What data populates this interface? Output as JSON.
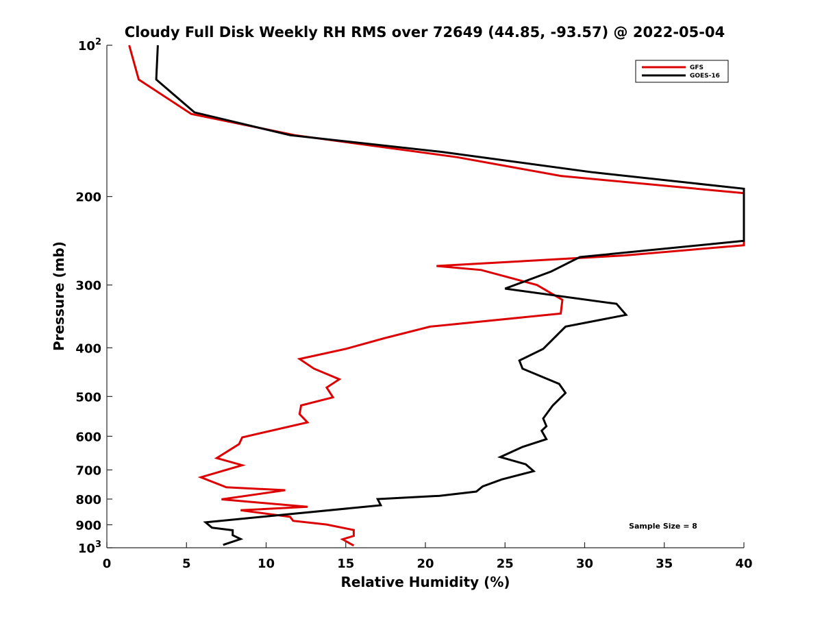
{
  "chart_data": {
    "type": "line",
    "title": "Cloudy Full Disk Weekly RH RMS over 72649 (44.85, -93.57) @ 2022-05-04",
    "xlabel": "Relative Humidity (%)",
    "ylabel": "Pressure (mb)",
    "xlim": [
      0,
      40
    ],
    "ylim": [
      100,
      1000
    ],
    "yscale": "log",
    "y_reversed": true,
    "xticks": [
      0,
      5,
      10,
      15,
      20,
      25,
      30,
      35,
      40
    ],
    "xtick_labels": [
      "0",
      "5",
      "10",
      "15",
      "20",
      "25",
      "30",
      "35",
      "40"
    ],
    "yticks": [
      100,
      200,
      300,
      400,
      500,
      600,
      700,
      800,
      900,
      1000
    ],
    "ytick_labels": [
      {
        "base": "10",
        "exp": "2"
      },
      {
        "base": "200",
        "exp": ""
      },
      {
        "base": "300",
        "exp": ""
      },
      {
        "base": "400",
        "exp": ""
      },
      {
        "base": "500",
        "exp": ""
      },
      {
        "base": "600",
        "exp": ""
      },
      {
        "base": "700",
        "exp": ""
      },
      {
        "base": "800",
        "exp": ""
      },
      {
        "base": "900",
        "exp": ""
      },
      {
        "base": "10",
        "exp": "3"
      }
    ],
    "grid": false,
    "legend": {
      "location": "top-right"
    },
    "annotation": "Sample Size = 8",
    "series": [
      {
        "name": "GFS",
        "color": "#dd0000",
        "points": [
          [
            1.4,
            100
          ],
          [
            2.0,
            117
          ],
          [
            5.3,
            137
          ],
          [
            11.8,
            151
          ],
          [
            22.0,
            167
          ],
          [
            28.5,
            182
          ],
          [
            40.0,
            197
          ],
          [
            40.0,
            250
          ],
          [
            32.5,
            262
          ],
          [
            20.7,
            275
          ],
          [
            23.5,
            280
          ],
          [
            27.0,
            300
          ],
          [
            28.6,
            321
          ],
          [
            28.5,
            342
          ],
          [
            20.3,
            363
          ],
          [
            17.4,
            383
          ],
          [
            15.0,
            402
          ],
          [
            12.1,
            421
          ],
          [
            13.0,
            440
          ],
          [
            14.6,
            462
          ],
          [
            13.8,
            480
          ],
          [
            14.2,
            502
          ],
          [
            12.2,
            521
          ],
          [
            12.1,
            542
          ],
          [
            12.6,
            563
          ],
          [
            8.5,
            603
          ],
          [
            8.3,
            622
          ],
          [
            6.9,
            663
          ],
          [
            8.5,
            685
          ],
          [
            5.9,
            724
          ],
          [
            7.5,
            758
          ],
          [
            11.2,
            768
          ],
          [
            7.2,
            801
          ],
          [
            12.6,
            829
          ],
          [
            8.4,
            842
          ],
          [
            11.5,
            868
          ],
          [
            11.7,
            884
          ],
          [
            13.8,
            899
          ],
          [
            15.5,
            922
          ],
          [
            15.5,
            947
          ],
          [
            14.8,
            962
          ],
          [
            15.5,
            990
          ]
        ]
      },
      {
        "name": "GOES-16",
        "color": "#000000",
        "points": [
          [
            3.2,
            100
          ],
          [
            3.1,
            117
          ],
          [
            5.5,
            136
          ],
          [
            11.5,
            151
          ],
          [
            21.0,
            163
          ],
          [
            30.5,
            179
          ],
          [
            40.0,
            193
          ],
          [
            40.0,
            245
          ],
          [
            29.7,
            264
          ],
          [
            27.9,
            282
          ],
          [
            25.0,
            305
          ],
          [
            32.0,
            327
          ],
          [
            32.6,
            344
          ],
          [
            28.8,
            363
          ],
          [
            27.4,
            402
          ],
          [
            25.9,
            424
          ],
          [
            26.1,
            440
          ],
          [
            28.4,
            472
          ],
          [
            28.8,
            492
          ],
          [
            28.0,
            521
          ],
          [
            27.4,
            553
          ],
          [
            27.6,
            573
          ],
          [
            27.3,
            585
          ],
          [
            27.6,
            608
          ],
          [
            26.1,
            630
          ],
          [
            24.7,
            660
          ],
          [
            26.3,
            682
          ],
          [
            26.8,
            704
          ],
          [
            24.8,
            731
          ],
          [
            23.6,
            755
          ],
          [
            23.2,
            773
          ],
          [
            20.9,
            788
          ],
          [
            17.0,
            800
          ],
          [
            17.2,
            823
          ],
          [
            6.2,
            890
          ],
          [
            6.6,
            912
          ],
          [
            7.9,
            923
          ],
          [
            7.9,
            944
          ],
          [
            8.4,
            961
          ],
          [
            7.3,
            987
          ]
        ]
      }
    ]
  }
}
